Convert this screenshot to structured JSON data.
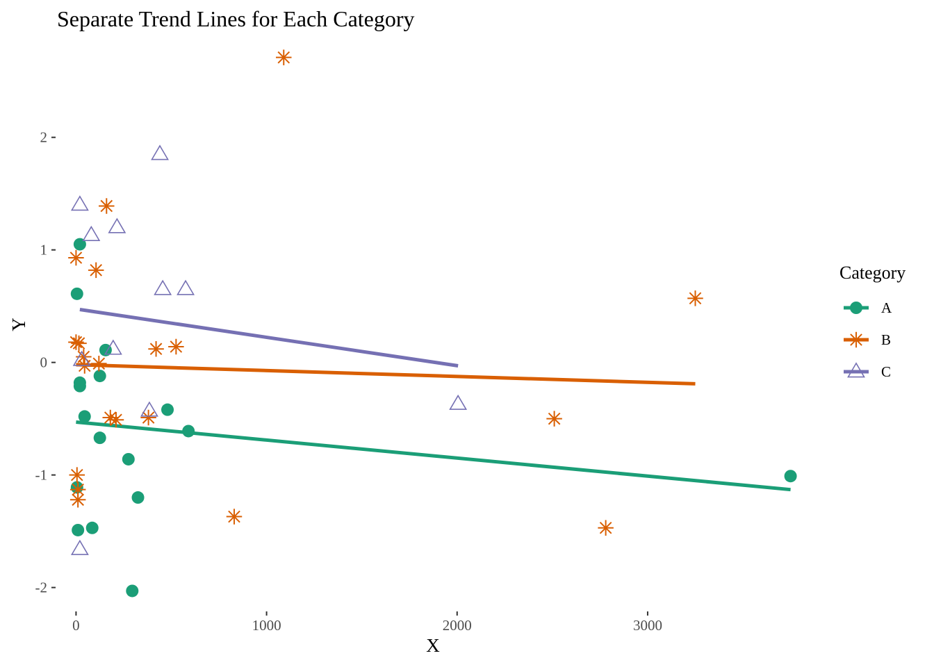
{
  "chart_data": {
    "type": "scatter",
    "title": "Separate Trend Lines for Each Category",
    "xlabel": "X",
    "ylabel": "Y",
    "xlim": [
      -100,
      3850
    ],
    "ylim": [
      -2.2,
      2.85
    ],
    "x_ticks": [
      0,
      1000,
      2000,
      3000
    ],
    "y_ticks": [
      -2,
      -1,
      0,
      1,
      2
    ],
    "grid": false,
    "legend": {
      "title": "Category",
      "position": "right"
    },
    "series": [
      {
        "name": "A",
        "color": "#1b9e77",
        "marker": "filled-circle",
        "points": [
          {
            "x": 20,
            "y": 1.05
          },
          {
            "x": 5,
            "y": 0.61
          },
          {
            "x": 155,
            "y": 0.11
          },
          {
            "x": 20,
            "y": -0.18
          },
          {
            "x": 20,
            "y": -0.21
          },
          {
            "x": 125,
            "y": -0.12
          },
          {
            "x": 45,
            "y": -0.48
          },
          {
            "x": 480,
            "y": -0.42
          },
          {
            "x": 590,
            "y": -0.61
          },
          {
            "x": 125,
            "y": -0.67
          },
          {
            "x": 275,
            "y": -0.86
          },
          {
            "x": 5,
            "y": -1.11
          },
          {
            "x": 325,
            "y": -1.2
          },
          {
            "x": 10,
            "y": -1.49
          },
          {
            "x": 85,
            "y": -1.47
          },
          {
            "x": 295,
            "y": -2.03
          },
          {
            "x": 3750,
            "y": -1.01
          }
        ],
        "trend": {
          "x": [
            0,
            3750
          ],
          "y": [
            -0.53,
            -1.13
          ]
        }
      },
      {
        "name": "B",
        "color": "#d95f02",
        "marker": "asterisk",
        "points": [
          {
            "x": 1090,
            "y": 2.71
          },
          {
            "x": 160,
            "y": 1.39
          },
          {
            "x": 0,
            "y": 0.93
          },
          {
            "x": 105,
            "y": 0.82
          },
          {
            "x": 3250,
            "y": 0.57
          },
          {
            "x": 0,
            "y": 0.18
          },
          {
            "x": 15,
            "y": 0.17
          },
          {
            "x": 420,
            "y": 0.12
          },
          {
            "x": 525,
            "y": 0.14
          },
          {
            "x": 40,
            "y": 0.05
          },
          {
            "x": 45,
            "y": -0.03
          },
          {
            "x": 120,
            "y": -0.01
          },
          {
            "x": 180,
            "y": -0.49
          },
          {
            "x": 210,
            "y": -0.51
          },
          {
            "x": 380,
            "y": -0.49
          },
          {
            "x": 2510,
            "y": -0.5
          },
          {
            "x": 5,
            "y": -1.0
          },
          {
            "x": 10,
            "y": -1.13
          },
          {
            "x": 10,
            "y": -1.22
          },
          {
            "x": 830,
            "y": -1.37
          },
          {
            "x": 2780,
            "y": -1.47
          }
        ],
        "trend": {
          "x": [
            0,
            3250
          ],
          "y": [
            -0.02,
            -0.19
          ]
        }
      },
      {
        "name": "C",
        "color": "#7570b3",
        "marker": "open-triangle",
        "points": [
          {
            "x": 440,
            "y": 1.85
          },
          {
            "x": 20,
            "y": 1.4
          },
          {
            "x": 215,
            "y": 1.2
          },
          {
            "x": 80,
            "y": 1.13
          },
          {
            "x": 455,
            "y": 0.65
          },
          {
            "x": 575,
            "y": 0.65
          },
          {
            "x": 195,
            "y": 0.12
          },
          {
            "x": 30,
            "y": 0.02
          },
          {
            "x": 385,
            "y": -0.43
          },
          {
            "x": 2005,
            "y": -0.37
          },
          {
            "x": 20,
            "y": -1.66
          }
        ],
        "trend": {
          "x": [
            20,
            2005
          ],
          "y": [
            0.47,
            -0.03
          ]
        }
      }
    ]
  }
}
